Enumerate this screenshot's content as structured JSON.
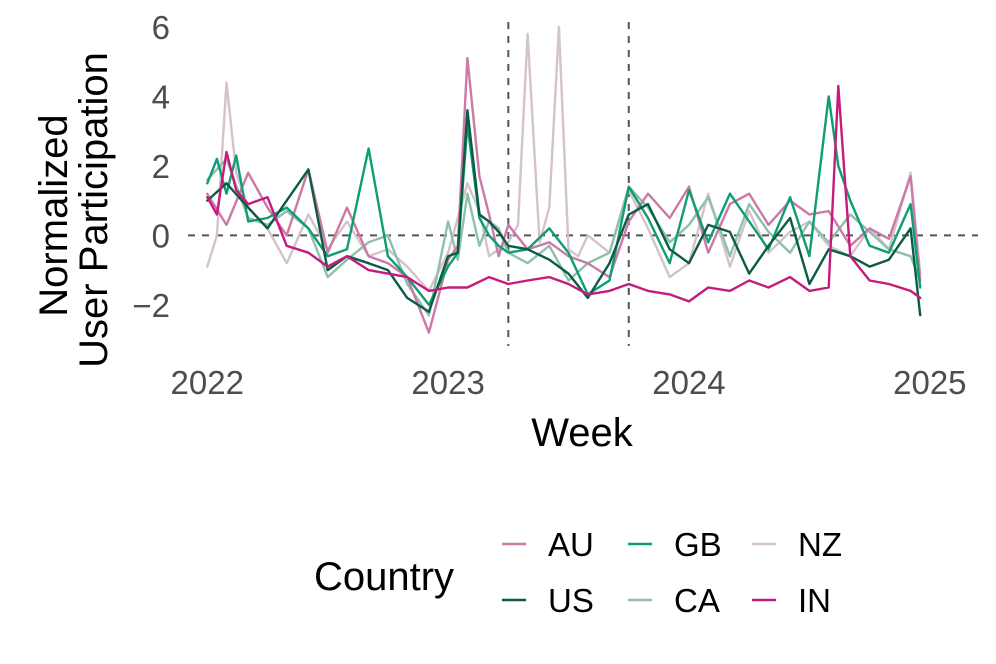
{
  "chart_data": {
    "type": "line",
    "xlabel": "Week",
    "ylabel_lines": [
      "Normalized",
      "User Participation"
    ],
    "legend_title": "Country",
    "legend_position": "bottom",
    "grid": false,
    "x_ticks": [
      2022,
      2023,
      2024,
      2025
    ],
    "y_ticks": [
      -2,
      0,
      2,
      4,
      6
    ],
    "y_tick_labels": [
      "−2",
      "0",
      "2",
      "4",
      "6"
    ],
    "xlim": [
      2021.92,
      2025.2
    ],
    "ylim": [
      -3.3,
      6.2
    ],
    "reference_lines": {
      "horizontal": 0,
      "vertical": [
        2023.25,
        2023.75
      ]
    },
    "series": [
      {
        "name": "AU",
        "color": "#cc79a7",
        "x": [
          2022.0,
          2022.08,
          2022.17,
          2022.25,
          2022.33,
          2022.42,
          2022.5,
          2022.58,
          2022.67,
          2022.75,
          2022.83,
          2022.92,
          2023.0,
          2023.04,
          2023.08,
          2023.13,
          2023.17,
          2023.21,
          2023.25,
          2023.33,
          2023.42,
          2023.5,
          2023.58,
          2023.67,
          2023.75,
          2023.83,
          2023.92,
          2024.0,
          2024.08,
          2024.17,
          2024.25,
          2024.33,
          2024.42,
          2024.5,
          2024.58,
          2024.67,
          2024.75,
          2024.83,
          2024.92,
          2024.96
        ],
        "y": [
          1.2,
          0.3,
          1.8,
          0.8,
          0.0,
          1.9,
          -0.5,
          0.8,
          -0.6,
          -0.8,
          -1.2,
          -2.8,
          -0.7,
          -0.3,
          5.1,
          1.7,
          0.6,
          -0.6,
          0.3,
          -0.4,
          -0.2,
          -0.6,
          -0.8,
          -1.2,
          0.4,
          1.2,
          0.5,
          1.4,
          -0.5,
          0.9,
          1.2,
          0.3,
          1.0,
          0.6,
          0.7,
          -0.3,
          0.2,
          -0.1,
          1.7,
          -1.3
        ]
      },
      {
        "name": "US",
        "color": "#0a5c45",
        "x": [
          2022.0,
          2022.08,
          2022.17,
          2022.25,
          2022.33,
          2022.42,
          2022.5,
          2022.58,
          2022.67,
          2022.75,
          2022.83,
          2022.92,
          2023.0,
          2023.04,
          2023.08,
          2023.13,
          2023.17,
          2023.21,
          2023.25,
          2023.33,
          2023.42,
          2023.5,
          2023.58,
          2023.67,
          2023.75,
          2023.83,
          2023.92,
          2024.0,
          2024.08,
          2024.17,
          2024.25,
          2024.33,
          2024.42,
          2024.5,
          2024.58,
          2024.67,
          2024.75,
          2024.83,
          2024.92,
          2024.96
        ],
        "y": [
          1.0,
          1.5,
          0.8,
          0.2,
          1.0,
          1.9,
          -1.0,
          -0.6,
          -0.8,
          -1.0,
          -1.8,
          -2.2,
          -0.6,
          -0.5,
          3.6,
          0.6,
          0.4,
          0.1,
          -0.3,
          -0.4,
          -0.7,
          -1.1,
          -1.8,
          -0.8,
          0.6,
          0.9,
          -0.4,
          -0.8,
          0.3,
          0.1,
          -1.1,
          -0.3,
          0.5,
          -1.4,
          -0.4,
          -0.6,
          -0.9,
          -0.7,
          0.2,
          -2.3
        ]
      },
      {
        "name": "GB",
        "color": "#0e9e72",
        "x": [
          2022.0,
          2022.04,
          2022.08,
          2022.12,
          2022.17,
          2022.25,
          2022.33,
          2022.42,
          2022.5,
          2022.58,
          2022.67,
          2022.75,
          2022.83,
          2022.92,
          2023.0,
          2023.04,
          2023.08,
          2023.13,
          2023.17,
          2023.21,
          2023.25,
          2023.33,
          2023.42,
          2023.5,
          2023.58,
          2023.67,
          2023.75,
          2023.83,
          2023.92,
          2024.0,
          2024.08,
          2024.17,
          2024.25,
          2024.33,
          2024.42,
          2024.5,
          2024.58,
          2024.62,
          2024.67,
          2024.75,
          2024.83,
          2024.92,
          2024.96
        ],
        "y": [
          1.5,
          2.2,
          1.2,
          2.3,
          0.4,
          0.5,
          0.8,
          0.2,
          -0.6,
          -0.4,
          2.5,
          -0.6,
          -1.2,
          -2.0,
          -0.9,
          -0.5,
          3.2,
          0.5,
          0.0,
          -0.3,
          -0.5,
          -0.4,
          0.2,
          -0.5,
          -1.7,
          -1.3,
          1.4,
          0.5,
          -0.8,
          1.3,
          -0.2,
          1.2,
          0.4,
          -0.4,
          1.1,
          -0.6,
          4.0,
          2.0,
          1.0,
          -0.3,
          -0.5,
          0.9,
          -1.5
        ]
      },
      {
        "name": "CA",
        "color": "#8fc1aa",
        "x": [
          2022.0,
          2022.08,
          2022.17,
          2022.25,
          2022.33,
          2022.42,
          2022.5,
          2022.58,
          2022.67,
          2022.75,
          2022.83,
          2022.92,
          2023.0,
          2023.04,
          2023.08,
          2023.13,
          2023.17,
          2023.21,
          2023.25,
          2023.33,
          2023.42,
          2023.5,
          2023.58,
          2023.67,
          2023.75,
          2023.83,
          2023.92,
          2024.0,
          2024.08,
          2024.17,
          2024.25,
          2024.33,
          2024.42,
          2024.5,
          2024.58,
          2024.67,
          2024.75,
          2024.83,
          2024.92,
          2024.96
        ],
        "y": [
          1.6,
          2.2,
          0.5,
          0.3,
          0.7,
          0.2,
          -1.2,
          -0.7,
          -0.2,
          0.0,
          -1.4,
          -2.3,
          0.4,
          -0.7,
          1.2,
          -0.3,
          0.4,
          0.2,
          -0.5,
          -0.8,
          -0.3,
          -1.3,
          -0.8,
          -0.5,
          1.4,
          0.8,
          -0.2,
          0.3,
          1.1,
          -0.6,
          0.9,
          0.1,
          -0.5,
          0.4,
          -0.2,
          0.6,
          0.1,
          -0.4,
          -0.6,
          -1.3
        ]
      },
      {
        "name": "NZ",
        "color": "#d4c3cd",
        "x": [
          2022.0,
          2022.04,
          2022.08,
          2022.12,
          2022.17,
          2022.25,
          2022.33,
          2022.42,
          2022.5,
          2022.58,
          2022.67,
          2022.75,
          2022.83,
          2022.92,
          2023.0,
          2023.08,
          2023.13,
          2023.17,
          2023.25,
          2023.29,
          2023.33,
          2023.38,
          2023.42,
          2023.46,
          2023.5,
          2023.54,
          2023.58,
          2023.67,
          2023.75,
          2023.83,
          2023.92,
          2024.0,
          2024.08,
          2024.17,
          2024.25,
          2024.33,
          2024.42,
          2024.5,
          2024.58,
          2024.67,
          2024.75,
          2024.83,
          2024.92,
          2024.96
        ],
        "y": [
          -0.9,
          0.0,
          4.4,
          1.8,
          0.8,
          0.2,
          -0.8,
          0.6,
          -0.4,
          0.4,
          -0.6,
          -0.4,
          -0.9,
          -1.6,
          -0.5,
          1.5,
          0.7,
          -0.6,
          -0.2,
          0.3,
          5.8,
          -0.2,
          0.8,
          6.0,
          -0.4,
          -0.6,
          0.0,
          -0.5,
          1.3,
          0.2,
          -1.2,
          -0.8,
          1.2,
          -0.9,
          0.7,
          -0.5,
          0.1,
          0.4,
          -0.3,
          -0.6,
          0.2,
          -0.4,
          1.8,
          -1.1
        ]
      },
      {
        "name": "IN",
        "color": "#c51b7d",
        "x": [
          2022.0,
          2022.04,
          2022.08,
          2022.12,
          2022.17,
          2022.25,
          2022.33,
          2022.42,
          2022.5,
          2022.58,
          2022.67,
          2022.75,
          2022.83,
          2022.92,
          2023.0,
          2023.08,
          2023.17,
          2023.25,
          2023.33,
          2023.42,
          2023.5,
          2023.58,
          2023.67,
          2023.75,
          2023.83,
          2023.92,
          2024.0,
          2024.08,
          2024.17,
          2024.25,
          2024.33,
          2024.42,
          2024.5,
          2024.58,
          2024.62,
          2024.67,
          2024.75,
          2024.83,
          2024.92,
          2024.96
        ],
        "y": [
          1.1,
          0.6,
          2.4,
          1.3,
          0.9,
          1.1,
          -0.3,
          -0.5,
          -0.9,
          -0.6,
          -1.0,
          -1.1,
          -1.2,
          -1.6,
          -1.5,
          -1.5,
          -1.2,
          -1.4,
          -1.3,
          -1.2,
          -1.4,
          -1.7,
          -1.6,
          -1.4,
          -1.6,
          -1.7,
          -1.9,
          -1.5,
          -1.6,
          -1.3,
          -1.5,
          -1.2,
          -1.6,
          -1.5,
          4.3,
          -0.6,
          -1.3,
          -1.4,
          -1.6,
          -1.8
        ]
      }
    ]
  }
}
